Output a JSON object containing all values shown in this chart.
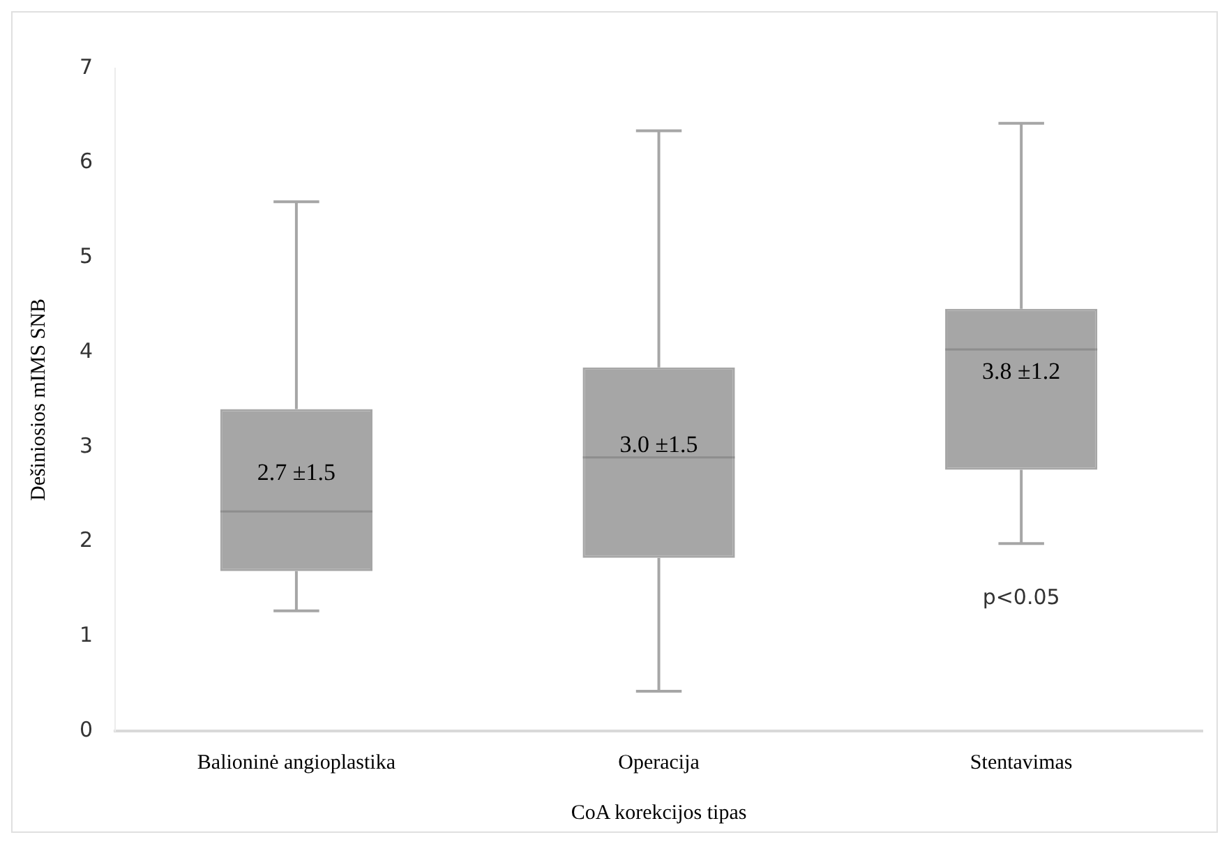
{
  "chart_data": {
    "type": "box",
    "xlabel": "CoA korekcijos tipas",
    "ylabel": "Dešiniosios mIMS SNB",
    "categories": [
      "Balioninė angioplastika",
      "Operacija",
      "Stentavimas"
    ],
    "boxes": [
      {
        "low": 1.27,
        "q1": 1.69,
        "median": 2.32,
        "q3": 3.4,
        "high": 5.59
      },
      {
        "low": 0.42,
        "q1": 1.83,
        "median": 2.89,
        "q3": 3.84,
        "high": 6.34
      },
      {
        "low": 1.98,
        "q1": 2.76,
        "median": 4.03,
        "q3": 4.46,
        "high": 6.42
      }
    ],
    "color": "#a6a6a6",
    "ylim": [
      0,
      7
    ],
    "yticks": [
      0,
      1,
      2,
      3,
      4,
      5,
      6,
      7
    ],
    "grid": false,
    "annotations": [
      "2.7 ±1.5",
      "3.0 ±1.5",
      "3.8 ±1.2",
      "p<0.05"
    ]
  }
}
